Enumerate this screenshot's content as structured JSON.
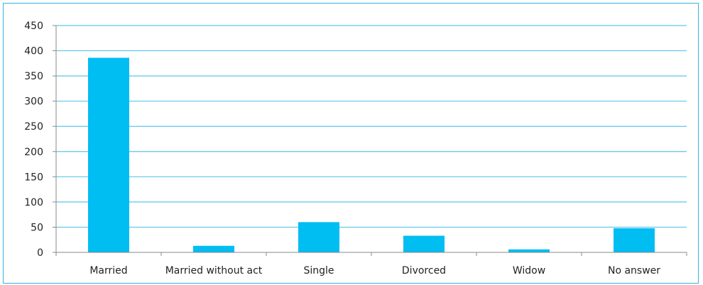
{
  "chart_data": {
    "type": "bar",
    "categories": [
      "Married",
      "Married without act",
      "Single",
      "Divorced",
      "Widow",
      "No answer"
    ],
    "values": [
      386,
      13,
      60,
      33,
      6,
      48
    ],
    "title": "",
    "xlabel": "",
    "ylabel": "",
    "ylim": [
      0,
      450
    ],
    "yticks": [
      0,
      50,
      100,
      150,
      200,
      250,
      300,
      350,
      400,
      450
    ],
    "grid": true,
    "colors": {
      "bar": "#00bdf2",
      "grid": "#5cc6ec",
      "frame": "#33b4e6",
      "axis": "#8a8a8a"
    }
  }
}
